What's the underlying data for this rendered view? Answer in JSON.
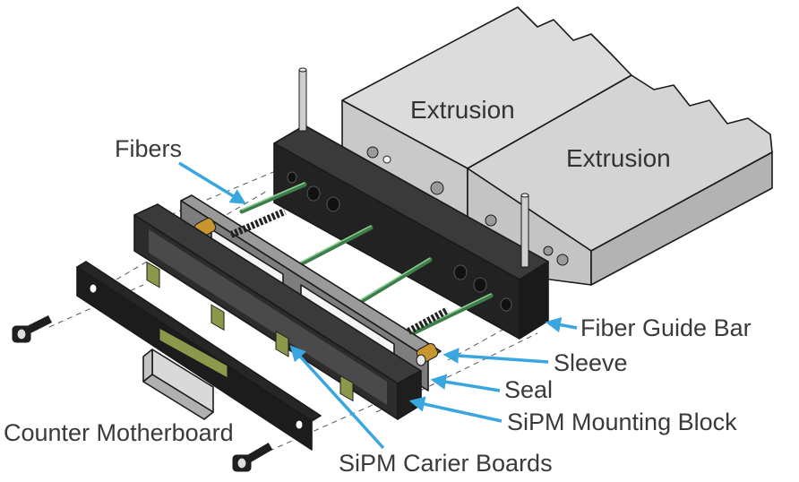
{
  "labels": {
    "extrusion_1": "Extrusion",
    "extrusion_2": "Extrusion",
    "fibers": "Fibers",
    "fiber_guide_bar": "Fiber Guide Bar",
    "sleeve": "Sleeve",
    "seal": "Seal",
    "sipm_mounting_block": "SiPM Mounting Block",
    "counter_motherboard": "Counter Motherboard",
    "sipm_carier_boards": "SiPM Carier Boards"
  },
  "colors": {
    "arrow": "#3aa6e0",
    "extrusion_top": "#d9d9d9",
    "extrusion_front": "#c7c7c7",
    "extrusion_side": "#b5b5b5",
    "guide_bar": "#232323",
    "block": "#2a2a2a",
    "fiber": "#3d7d4a",
    "carrier_board": "#8a9a4a",
    "sleeve": "#c8962e"
  }
}
